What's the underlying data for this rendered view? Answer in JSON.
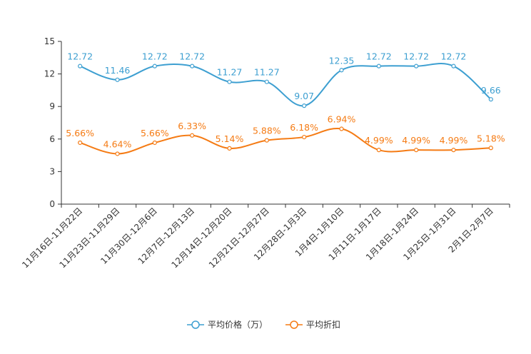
{
  "chart_data": {
    "type": "line",
    "categories": [
      "11月16日-11月22日",
      "11月23日-11月29日",
      "11月30日-12月6日",
      "12月7日-12月13日",
      "12月14日-12月20日",
      "12月21日-12月27日",
      "12月28日-1月3日",
      "1月4日-1月10日",
      "1月11日-1月17日",
      "1月18日-1月24日",
      "1月25日-1月31日",
      "2月1日-2月7日"
    ],
    "ylim": [
      0,
      15
    ],
    "yticks": [
      "0",
      "3",
      "6",
      "9",
      "12",
      "15"
    ],
    "series": [
      {
        "name": "平均价格（万）",
        "color": "#3d9fd1",
        "values": [
          12.72,
          11.46,
          12.72,
          12.72,
          11.27,
          11.27,
          9.07,
          12.35,
          12.72,
          12.72,
          12.72,
          9.66
        ],
        "labels": [
          "12.72",
          "11.46",
          "12.72",
          "12.72",
          "11.27",
          "11.27",
          "9.07",
          "12.35",
          "12.72",
          "12.72",
          "12.72",
          "9.66"
        ]
      },
      {
        "name": "平均折扣",
        "color": "#f57b14",
        "values": [
          5.66,
          4.64,
          5.66,
          6.33,
          5.14,
          5.88,
          6.18,
          6.94,
          4.99,
          4.99,
          4.99,
          5.18
        ],
        "labels": [
          "5.66%",
          "4.64%",
          "5.66%",
          "6.33%",
          "5.14%",
          "5.88%",
          "6.18%",
          "6.94%",
          "4.99%",
          "4.99%",
          "4.99%",
          "5.18%"
        ]
      }
    ],
    "legend": "bottom-center"
  }
}
